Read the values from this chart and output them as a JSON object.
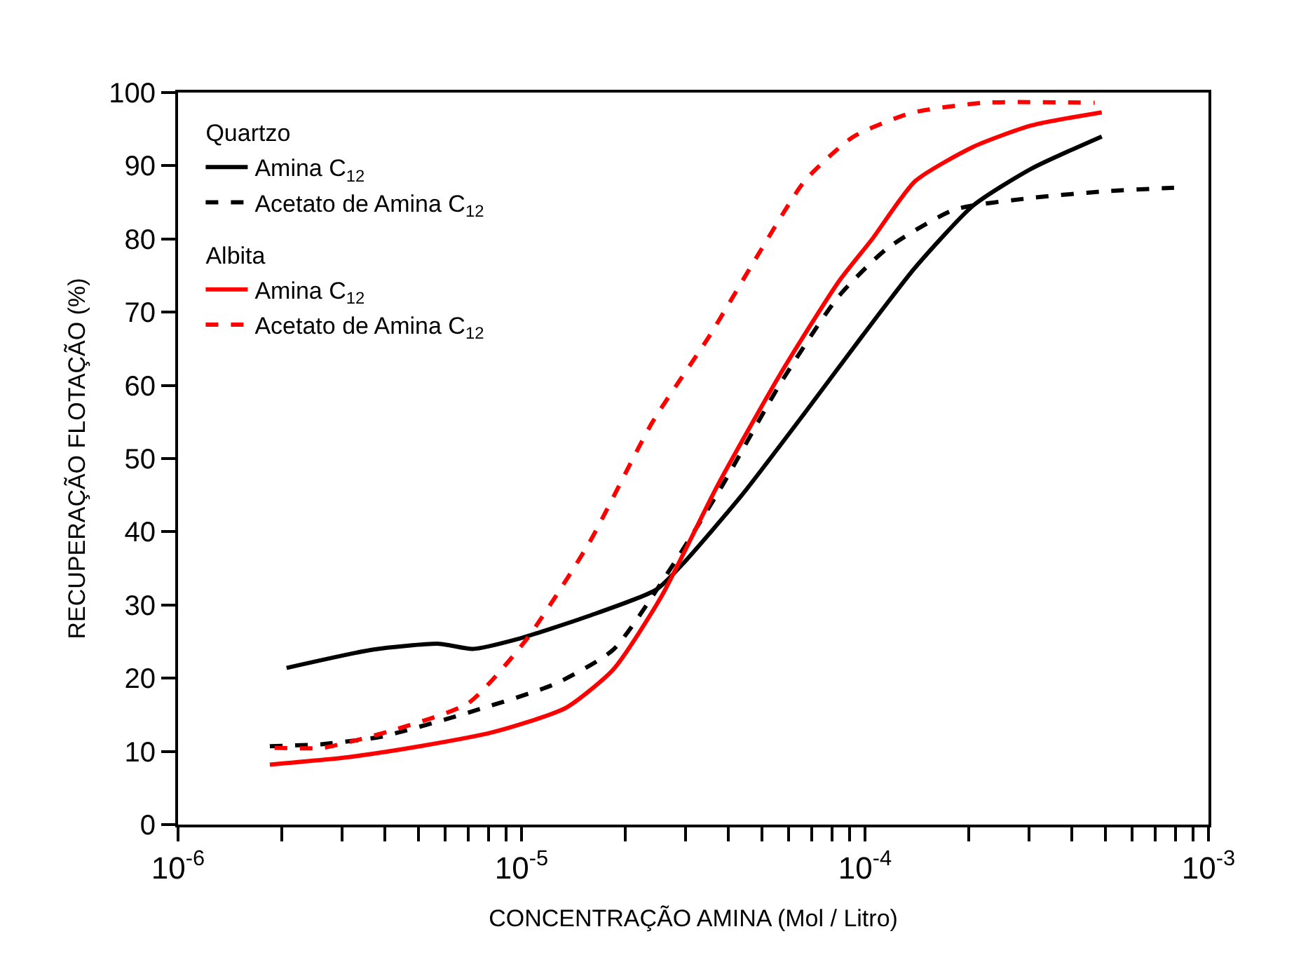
{
  "chart_data": {
    "type": "line",
    "xlabel": "CONCENTRAÇÃO AMINA (Mol / Litro)",
    "ylabel": "RECUPERAÇÃO FLOTAÇÃO (%)",
    "log": "x",
    "xlim": [
      1e-06,
      0.001
    ],
    "ylim": [
      0,
      100
    ],
    "xticks": [
      {
        "value": 1e-06,
        "label": "10$^{-6}$"
      },
      {
        "value": 2e-06,
        "label": null
      },
      {
        "value": 3e-06,
        "label": null
      },
      {
        "value": 4e-06,
        "label": null
      },
      {
        "value": 5e-06,
        "label": null
      },
      {
        "value": 6e-06,
        "label": null
      },
      {
        "value": 7e-06,
        "label": null
      },
      {
        "value": 8e-06,
        "label": null
      },
      {
        "value": 9e-06,
        "label": null
      },
      {
        "value": 1e-05,
        "label": "10$^{-5}$"
      },
      {
        "value": 2e-05,
        "label": null
      },
      {
        "value": 3e-05,
        "label": null
      },
      {
        "value": 4e-05,
        "label": null
      },
      {
        "value": 5e-05,
        "label": null
      },
      {
        "value": 6e-05,
        "label": null
      },
      {
        "value": 7e-05,
        "label": null
      },
      {
        "value": 8e-05,
        "label": null
      },
      {
        "value": 9e-05,
        "label": null
      },
      {
        "value": 0.0001,
        "label": "10$^{-4}$"
      },
      {
        "value": 0.0002,
        "label": null
      },
      {
        "value": 0.0003,
        "label": null
      },
      {
        "value": 0.0004,
        "label": null
      },
      {
        "value": 0.0005,
        "label": null
      },
      {
        "value": 0.0006,
        "label": null
      },
      {
        "value": 0.0007,
        "label": null
      },
      {
        "value": 0.0008,
        "label": null
      },
      {
        "value": 0.0009,
        "label": null
      },
      {
        "value": 0.001,
        "label": "10$^{-3}$"
      }
    ],
    "yticks": [
      0,
      10,
      20,
      30,
      40,
      50,
      60,
      70,
      80,
      90,
      100
    ],
    "legend": "top left",
    "marker": "none",
    "annotations": [
      "Quartzo",
      "Albita"
    ],
    "series": [
      {
        "name": "Amina C$_{12}$",
        "color": "#000000",
        "line_style": "solid",
        "x": [
          2.07e-06,
          3.69e-06,
          5.75e-06,
          7.21e-06,
          9.66e-06,
          1.57e-05,
          2.47e-05,
          2.96e-05,
          4.38e-05,
          6.67e-05,
          9.84e-05,
          0.00014,
          0.000207,
          0.000305,
          0.000489
        ],
        "values": [
          21.4,
          23.9,
          24.7,
          24.0,
          25.3,
          28.5,
          32.1,
          35.7,
          45.0,
          56.2,
          66.8,
          76.1,
          84.6,
          89.6,
          94.0
        ]
      },
      {
        "name": "Acetato de Amina C$_{12}$",
        "color": "#000000",
        "line_style": "dashed",
        "x": [
          1.85e-06,
          2.64e-06,
          3.9e-06,
          7e-06,
          1.25e-05,
          1.85e-05,
          2.78e-05,
          3.84e-05,
          5.66e-05,
          8.36e-05,
          0.000116,
          0.000182,
          0.000305,
          0.000497,
          0.000794
        ],
        "values": [
          10.7,
          11.0,
          12.0,
          15.3,
          19.2,
          23.9,
          35.7,
          46.3,
          60.2,
          72.1,
          78.7,
          84.0,
          85.6,
          86.5,
          87.0
        ]
      },
      {
        "name": "Amina C$_{12}$",
        "color": "#ff0000",
        "line_style": "solid",
        "x": [
          1.85e-06,
          3.11e-06,
          5.06e-06,
          8.22e-06,
          1.34e-05,
          1.85e-05,
          2.55e-05,
          3.72e-05,
          5.66e-05,
          8.36e-05,
          0.000105,
          0.00014,
          0.000207,
          0.000305,
          0.000489
        ],
        "values": [
          8.2,
          9.2,
          10.7,
          12.6,
          15.9,
          21.2,
          31.1,
          46.3,
          61.5,
          74.1,
          80.0,
          87.9,
          92.6,
          95.5,
          97.3
        ]
      },
      {
        "name": "Acetato de Amina C$_{12}$",
        "color": "#ff0000",
        "line_style": "dashed",
        "x": [
          1.91e-06,
          2.64e-06,
          4.3e-06,
          7e-06,
          1.03e-05,
          1.57e-05,
          2.4e-05,
          3.53e-05,
          4.82e-05,
          6.67e-05,
          9.2e-05,
          0.000136,
          0.000221,
          0.000466
        ],
        "values": [
          10.5,
          10.5,
          13.0,
          16.6,
          25.2,
          38.4,
          54.9,
          66.8,
          77.4,
          87.9,
          93.9,
          97.2,
          98.6,
          98.6
        ]
      }
    ]
  }
}
